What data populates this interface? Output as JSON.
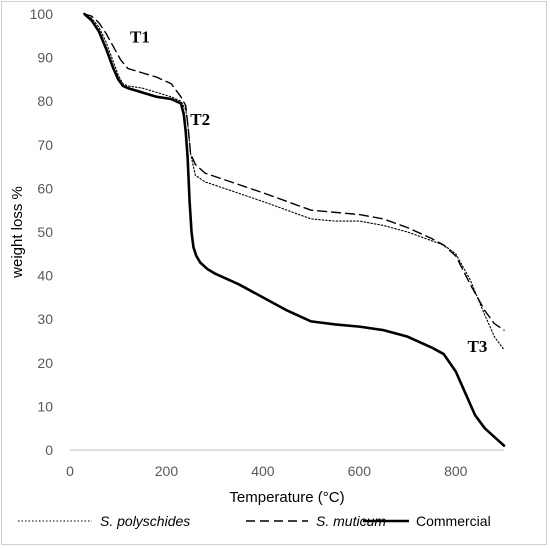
{
  "chart_data": {
    "type": "line",
    "xlabel": "Temperature (°C)",
    "ylabel": "weight loss %",
    "xlim": [
      0,
      900
    ],
    "ylim": [
      0,
      100
    ],
    "x_ticks": [
      0,
      200,
      400,
      600,
      800
    ],
    "y_ticks": [
      0,
      10,
      20,
      30,
      40,
      50,
      60,
      70,
      80,
      90,
      100
    ],
    "grid": false,
    "legend_position": "bottom",
    "annotations": [
      {
        "text": "T1",
        "x": 145,
        "y": 93.5
      },
      {
        "text": "T2",
        "x": 270,
        "y": 74.5
      },
      {
        "text": "T3",
        "x": 845,
        "y": 22.5
      }
    ],
    "series": [
      {
        "name": "S. polyschides",
        "style": "dotted",
        "color": "#000000",
        "x": [
          30,
          45,
          60,
          75,
          90,
          100,
          110,
          120,
          150,
          180,
          210,
          230,
          240,
          245,
          250,
          260,
          280,
          320,
          360,
          400,
          450,
          500,
          550,
          600,
          650,
          700,
          750,
          775,
          800,
          830,
          860,
          880,
          900
        ],
        "y": [
          100,
          99,
          97,
          93.5,
          89,
          86,
          84,
          83.5,
          83,
          82,
          81,
          80,
          78,
          74,
          68,
          63,
          61.5,
          60,
          58.5,
          57,
          55,
          53,
          52.5,
          52.5,
          51.5,
          50,
          48,
          47,
          45,
          39,
          31,
          26,
          23
        ]
      },
      {
        "name": "S. muticum",
        "style": "dashed",
        "color": "#000000",
        "x": [
          30,
          45,
          60,
          75,
          90,
          105,
          120,
          150,
          180,
          210,
          230,
          240,
          245,
          250,
          260,
          280,
          320,
          360,
          400,
          450,
          500,
          550,
          600,
          650,
          700,
          750,
          775,
          800,
          830,
          860,
          880,
          900
        ],
        "y": [
          100,
          99.5,
          98,
          95.5,
          92.5,
          89.5,
          87.5,
          86.5,
          85.5,
          84,
          81,
          79,
          74,
          68,
          65.5,
          63.5,
          62,
          60.5,
          59,
          57,
          55,
          54.5,
          54,
          53,
          51,
          48.5,
          47,
          44.5,
          38,
          32,
          29,
          27.5
        ]
      },
      {
        "name": "Commercial",
        "style": "solid",
        "color": "#000000",
        "x": [
          30,
          45,
          60,
          75,
          90,
          100,
          110,
          120,
          150,
          180,
          210,
          230,
          236,
          240,
          244,
          248,
          252,
          256,
          262,
          270,
          285,
          300,
          350,
          400,
          450,
          500,
          550,
          600,
          650,
          700,
          750,
          775,
          800,
          820,
          840,
          860,
          880,
          890,
          900
        ],
        "y": [
          100,
          98.5,
          96,
          92,
          87.5,
          85,
          83.5,
          83,
          82,
          81,
          80.5,
          79.5,
          77,
          73,
          67,
          57,
          50,
          46.5,
          44.5,
          43,
          41.5,
          40.5,
          38,
          35,
          32,
          29.5,
          28.8,
          28.3,
          27.5,
          26,
          23.5,
          22,
          18,
          13,
          8,
          5,
          3,
          2,
          1
        ]
      }
    ]
  }
}
